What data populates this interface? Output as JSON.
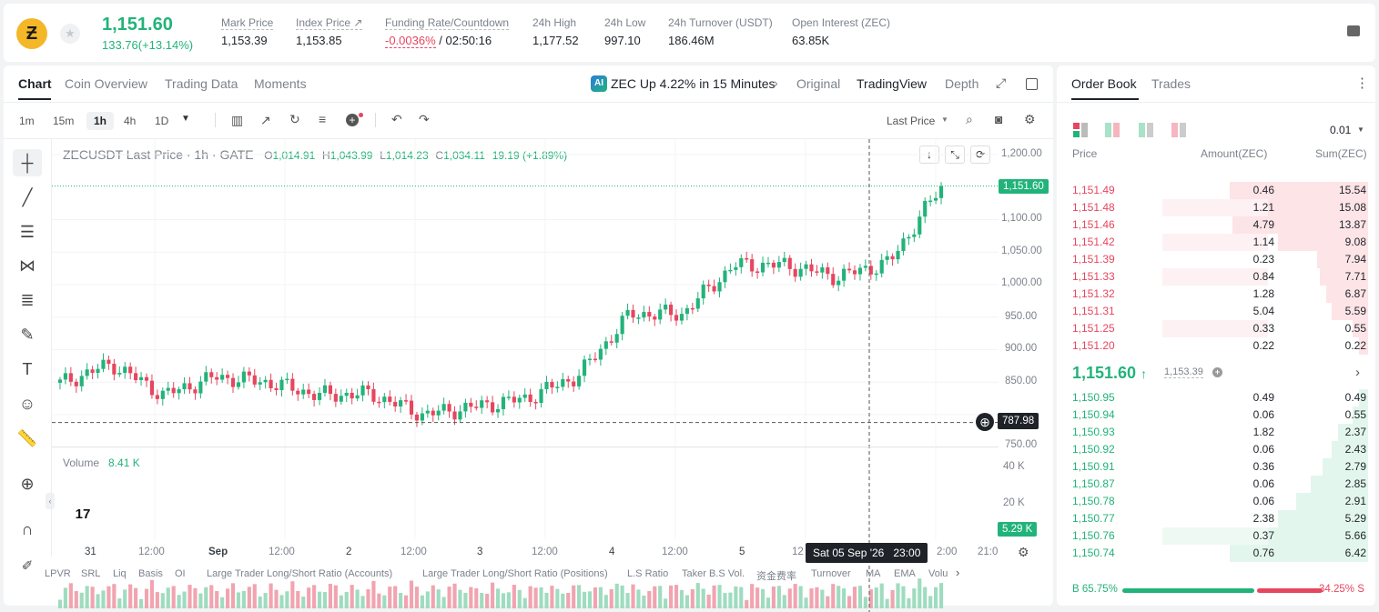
{
  "ticker": {
    "symbol_glyph": "Ƶ",
    "last_price": "1,151.60",
    "change": "133.76(+13.14%)",
    "stats": [
      {
        "label": "Mark Price",
        "value": "1,153.39"
      },
      {
        "label": "Index Price ↗",
        "value": "1,153.85"
      },
      {
        "label": "Funding Rate/Countdown",
        "value_rate": "-0.0036%",
        "value_countdown": " / 02:50:16"
      },
      {
        "label": "24h High",
        "value": "1,177.52"
      },
      {
        "label": "24h Low",
        "value": "997.10"
      },
      {
        "label": "24h Turnover (USDT)",
        "value": "186.46M"
      },
      {
        "label": "Open Interest (ZEC)",
        "value": "63.85K"
      }
    ]
  },
  "chart_tabs": [
    "Chart",
    "Coin Overview",
    "Trading Data",
    "Moments"
  ],
  "news_ticker": "ZEC Up 4.22% in 15 Minutes",
  "view_modes": [
    "Original",
    "TradingView",
    "Depth"
  ],
  "timeframes": [
    "1m",
    "15m",
    "1h",
    "4h",
    "1D"
  ],
  "price_type": "Last Price",
  "legend": {
    "title": "ZECUSDT Last Price · 1h · GATE",
    "o_label": "O",
    "o": "1,014.91",
    "h_label": "H",
    "h": "1,043.99",
    "l_label": "L",
    "l": "1,014.23",
    "c_label": "C",
    "c": "1,034.11",
    "change": "19.19 (+1.89%)"
  },
  "price_axis": [
    "1,200.00",
    "1,100.00",
    "1,050.00",
    "1,000.00",
    "950.00",
    "900.00",
    "850.00",
    "750.00"
  ],
  "current_price_tag": "1,151.60",
  "crosshair_price_tag": "787.98",
  "volume": {
    "label": "Volume",
    "value": "8.41 K",
    "axis": [
      "40 K",
      "20 K"
    ],
    "tag": "5.29 K"
  },
  "time_axis": [
    "31",
    "12:00",
    "Sep",
    "12:00",
    "2",
    "12:00",
    "3",
    "12:00",
    "4",
    "12:00",
    "5",
    "12",
    "2:00",
    "21:0"
  ],
  "crosshair_time": "Sat 05 Sep '26   23:00",
  "indicators": [
    "LPVR",
    "SRL",
    "Liq",
    "Basis",
    "OI",
    "Large Trader Long/Short Ratio (Accounts)",
    "Large Trader Long/Short Ratio (Positions)",
    "L.S Ratio",
    "Taker B.S Vol.",
    "资金费率",
    "Turnover",
    "MA",
    "EMA",
    "Volu"
  ],
  "tv_logo": "17",
  "chart_data": {
    "type": "candlestick",
    "title": "ZECUSDT Last Price · 1h · GATE",
    "x_labels": [
      "31",
      "12:00",
      "Sep",
      "12:00",
      "2",
      "12:00",
      "3",
      "12:00",
      "4",
      "12:00",
      "5",
      "12",
      "2:00"
    ],
    "ylim": [
      750,
      1200
    ],
    "key_points": [
      {
        "x": "31 00:00",
        "close": 848
      },
      {
        "x": "31 04:00",
        "close": 878
      },
      {
        "x": "31 12:00",
        "close": 830
      },
      {
        "x": "Sep 1 00:00",
        "close": 858
      },
      {
        "x": "Sep 1 12:00",
        "close": 850
      },
      {
        "x": "Sep 2 00:00",
        "close": 830
      },
      {
        "x": "Sep 2 12:00",
        "close": 832
      },
      {
        "x": "Sep 2 18:00",
        "close": 800
      },
      {
        "x": "Sep 3 00:00",
        "close": 812
      },
      {
        "x": "Sep 3 12:00",
        "close": 825
      },
      {
        "x": "Sep 3 18:00",
        "close": 860
      },
      {
        "x": "Sep 4 00:00",
        "close": 955
      },
      {
        "x": "Sep 4 12:00",
        "close": 955
      },
      {
        "x": "Sep 4 18:00",
        "close": 1030
      },
      {
        "x": "Sep 5 00:00",
        "close": 1030
      },
      {
        "x": "Sep 5 12:00",
        "close": 1012
      },
      {
        "x": "Sep 5 23:00",
        "close": 1034
      },
      {
        "x": "Sep 6 04:00",
        "close": 1151.6
      }
    ],
    "volume_ylim": [
      0,
      40000
    ]
  },
  "order_book": {
    "tabs": [
      "Order Book",
      "Trades"
    ],
    "precision": "0.01",
    "headers": [
      "Price",
      "Amount(ZEC)",
      "Sum(ZEC)"
    ],
    "asks": [
      {
        "price": "1,151.49",
        "amount": "0.46",
        "sum": "15.54",
        "amount_frac": 0,
        "sum_frac": 0.46
      },
      {
        "price": "1,151.48",
        "amount": "1.21",
        "sum": "15.08",
        "amount_frac": 0.44,
        "sum_frac": 0.46
      },
      {
        "price": "1,151.46",
        "amount": "4.79",
        "sum": "13.87",
        "amount_frac": 0,
        "sum_frac": 0.45
      },
      {
        "price": "1,151.42",
        "amount": "1.14",
        "sum": "9.08",
        "amount_frac": 0.44,
        "sum_frac": 0.3
      },
      {
        "price": "1,151.39",
        "amount": "0.23",
        "sum": "7.94",
        "amount_frac": 0,
        "sum_frac": 0.17
      },
      {
        "price": "1,151.33",
        "amount": "0.84",
        "sum": "7.71",
        "amount_frac": 0.44,
        "sum_frac": 0.16
      },
      {
        "price": "1,151.32",
        "amount": "1.28",
        "sum": "6.87",
        "amount_frac": 0,
        "sum_frac": 0.14
      },
      {
        "price": "1,151.31",
        "amount": "5.04",
        "sum": "5.59",
        "amount_frac": 0,
        "sum_frac": 0.12
      },
      {
        "price": "1,151.25",
        "amount": "0.33",
        "sum": "0.55",
        "amount_frac": 0.44,
        "sum_frac": 0.05
      },
      {
        "price": "1,151.20",
        "amount": "0.22",
        "sum": "0.22",
        "amount_frac": 0,
        "sum_frac": 0.03
      }
    ],
    "mid_price": "1,151.60",
    "mid_mark": "1,153.39",
    "bids": [
      {
        "price": "1,150.95",
        "amount": "0.49",
        "sum": "0.49",
        "amount_frac": 0,
        "sum_frac": 0.03
      },
      {
        "price": "1,150.94",
        "amount": "0.06",
        "sum": "0.55",
        "amount_frac": 0,
        "sum_frac": 0.05
      },
      {
        "price": "1,150.93",
        "amount": "1.82",
        "sum": "2.37",
        "amount_frac": 0,
        "sum_frac": 0.1
      },
      {
        "price": "1,150.92",
        "amount": "0.06",
        "sum": "2.43",
        "amount_frac": 0,
        "sum_frac": 0.12
      },
      {
        "price": "1,150.91",
        "amount": "0.36",
        "sum": "2.79",
        "amount_frac": 0,
        "sum_frac": 0.15
      },
      {
        "price": "1,150.87",
        "amount": "0.06",
        "sum": "2.85",
        "amount_frac": 0,
        "sum_frac": 0.19
      },
      {
        "price": "1,150.78",
        "amount": "0.06",
        "sum": "2.91",
        "amount_frac": 0,
        "sum_frac": 0.24
      },
      {
        "price": "1,150.77",
        "amount": "2.38",
        "sum": "5.29",
        "amount_frac": 0,
        "sum_frac": 0.3
      },
      {
        "price": "1,150.76",
        "amount": "0.37",
        "sum": "5.66",
        "amount_frac": 0.44,
        "sum_frac": 0.38
      },
      {
        "price": "1,150.74",
        "amount": "0.76",
        "sum": "6.42",
        "amount_frac": 0,
        "sum_frac": 0.46
      }
    ],
    "buy_ratio": "B 65.75%",
    "sell_ratio": "34.25% S",
    "buy_frac": 0.6575
  },
  "colors": {
    "up": "#22b37a",
    "down": "#e6465e",
    "accent": "#1f2329"
  }
}
